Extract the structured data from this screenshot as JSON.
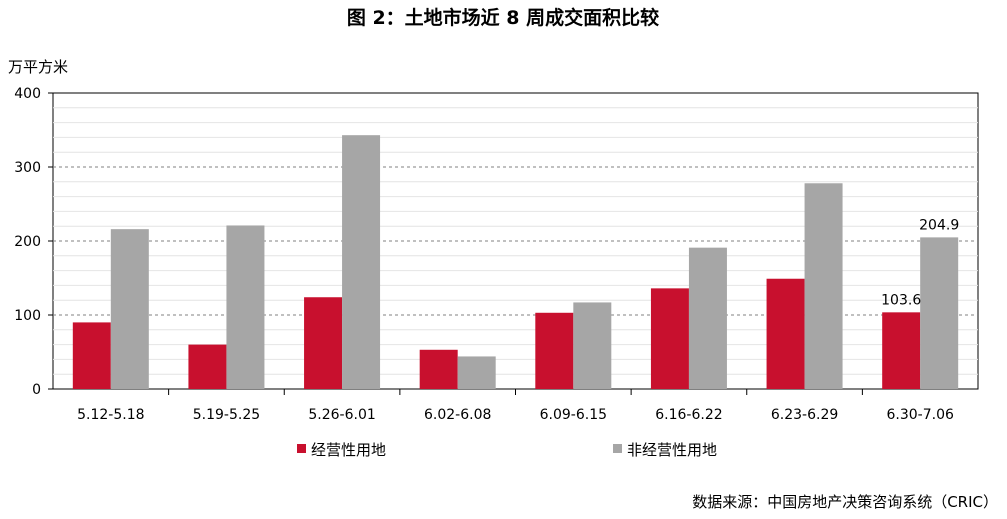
{
  "chart_data": {
    "type": "bar",
    "title": "图 2：土地市场近 8 周成交面积比较",
    "ylabel": "万平方米",
    "ylim": [
      0,
      400
    ],
    "yticks": [
      0,
      100,
      200,
      300,
      400
    ],
    "grid": true,
    "legend_position": "bottom",
    "categories": [
      "5.12-5.18",
      "5.19-5.25",
      "5.26-6.01",
      "6.02-6.08",
      "6.09-6.15",
      "6.16-6.22",
      "6.23-6.29",
      "6.30-7.06"
    ],
    "series": [
      {
        "name": "经营性用地",
        "color": "#c8102e",
        "values": [
          90,
          60,
          124,
          53,
          103,
          136,
          149,
          103.6
        ]
      },
      {
        "name": "非经营性用地",
        "color": "#a6a6a6",
        "values": [
          216,
          221,
          343,
          44,
          117,
          191,
          278,
          204.9
        ]
      }
    ],
    "data_labels": [
      {
        "series": 0,
        "index": 7,
        "text": "103.6"
      },
      {
        "series": 1,
        "index": 7,
        "text": "204.9"
      }
    ],
    "source": "数据来源：中国房地产决策咨询系统（CRIC）"
  }
}
